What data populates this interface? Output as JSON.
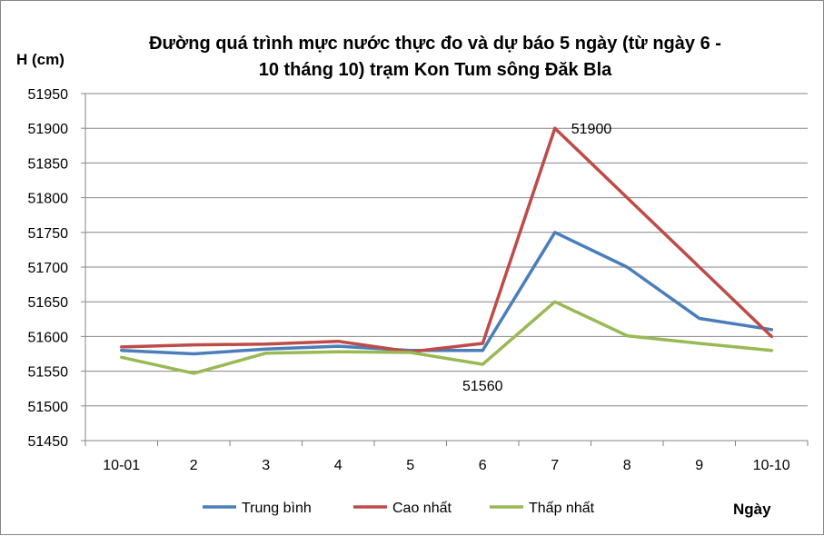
{
  "chart_data": {
    "type": "line",
    "title_lines": [
      "Đường quá trình mực nước thực đo và dự báo 5 ngày (từ ngày 6 -",
      "10 tháng 10) trạm Kon Tum sông Đăk Bla"
    ],
    "xlabel": "Ngày",
    "ylabel": "H (cm)",
    "categories": [
      "10-01",
      "2",
      "3",
      "4",
      "5",
      "6",
      "7",
      "8",
      "9",
      "10-10"
    ],
    "y_ticks": [
      "51450",
      "51500",
      "51550",
      "51600",
      "51650",
      "51700",
      "51750",
      "51800",
      "51850",
      "51900",
      "51950"
    ],
    "ylim": [
      51450,
      51950
    ],
    "grid": true,
    "legend_position": "bottom",
    "series": [
      {
        "name": "Trung bình",
        "color": "#4a7ebb",
        "values": [
          51580,
          51575,
          51582,
          51586,
          51580,
          51580,
          51750,
          51700,
          51626,
          51610
        ]
      },
      {
        "name": "Cao nhất",
        "color": "#be4b48",
        "values": [
          51585,
          51588,
          51589,
          51593,
          51578,
          51590,
          51900,
          51800,
          51700,
          51600
        ]
      },
      {
        "name": "Thấp nhất",
        "color": "#98b954",
        "values": [
          51570,
          51547,
          51576,
          51578,
          51577,
          51560,
          51650,
          51601,
          51590,
          51580
        ]
      }
    ],
    "annotations": [
      {
        "text": "51900",
        "series": "Cao nhất",
        "category": "7"
      },
      {
        "text": "51560",
        "series": "Thấp nhất",
        "category": "6"
      }
    ]
  }
}
